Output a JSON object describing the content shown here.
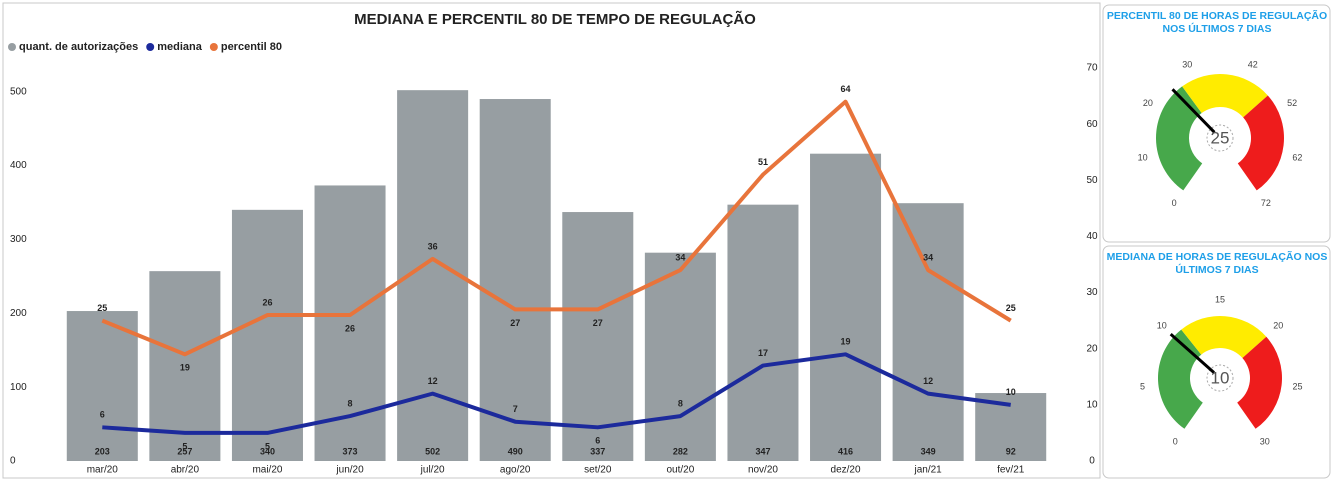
{
  "chart_data": [
    {
      "type": "bar",
      "title": "MEDIANA E PERCENTIL 80 DE TEMPO DE REGULAÇÃO",
      "categories": [
        "mar/20",
        "abr/20",
        "mai/20",
        "jun/20",
        "jul/20",
        "ago/20",
        "set/20",
        "out/20",
        "nov/20",
        "dez/20",
        "jan/21",
        "fev/21"
      ],
      "series": [
        {
          "name": "quant. de autorizações",
          "type": "bar",
          "color": "#979ea2",
          "values": [
            203,
            257,
            340,
            373,
            502,
            490,
            337,
            282,
            347,
            416,
            349,
            92
          ]
        },
        {
          "name": "mediana",
          "type": "line",
          "axis": "y2",
          "color": "#1c2a9c",
          "values": [
            6,
            5,
            5,
            8,
            12,
            7,
            6,
            8,
            17,
            19,
            12,
            10
          ]
        },
        {
          "name": "percentil 80",
          "type": "line",
          "axis": "y2",
          "color": "#e8743b",
          "values": [
            25,
            19,
            26,
            26,
            36,
            27,
            27,
            34,
            51,
            64,
            34,
            25
          ]
        }
      ],
      "ylim": [
        0,
        532
      ],
      "yticks": [
        0,
        100,
        200,
        300,
        400,
        500
      ],
      "y2lim": [
        0,
        70
      ],
      "y2ticks": [
        0,
        10,
        20,
        30,
        40,
        50,
        60,
        70
      ],
      "grid": false,
      "legend": "top-left"
    },
    {
      "type": "gauge",
      "title": "PERCENTIL 80 DE HORAS DE REGULAÇÃO NOS ÚLTIMOS 7 DIAS",
      "value": 25,
      "range": [
        0,
        72
      ],
      "ticks": [
        0,
        10,
        20,
        30,
        42,
        52,
        62,
        72
      ],
      "bands": [
        {
          "from": 0,
          "to": 27,
          "color": "#47a84b"
        },
        {
          "from": 27,
          "to": 48,
          "color": "#ffec00"
        },
        {
          "from": 48,
          "to": 72,
          "color": "#ee1c1c"
        }
      ]
    },
    {
      "type": "gauge",
      "title": "MEDIANA DE HORAS DE REGULAÇÃO NOS ÚLTIMOS 7 DIAS",
      "value": 10,
      "range": [
        0,
        30
      ],
      "ticks": [
        0,
        5,
        10,
        15,
        20,
        25,
        30
      ],
      "bands": [
        {
          "from": 0,
          "to": 11,
          "color": "#47a84b"
        },
        {
          "from": 11,
          "to": 20,
          "color": "#ffec00"
        },
        {
          "from": 20,
          "to": 30,
          "color": "#ee1c1c"
        }
      ]
    }
  ]
}
